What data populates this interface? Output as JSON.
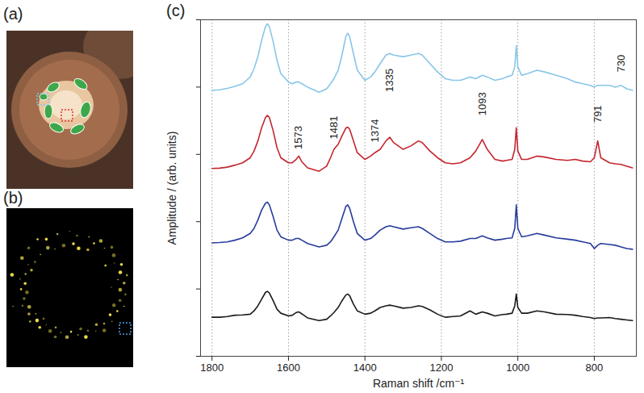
{
  "figure": {
    "panel_labels": [
      "(a)",
      "(b)",
      "(c)"
    ]
  },
  "chart_data": {
    "type": "line",
    "x_label": "Raman shift /cm⁻¹",
    "y_label": "Amplitude / (arb. units)",
    "xlim": [
      1830,
      690
    ],
    "xticks": [
      1800,
      1600,
      1400,
      1200,
      1000,
      800
    ],
    "ylim": [
      0,
      100
    ],
    "yticks": [
      0,
      20,
      40,
      60,
      80,
      100
    ],
    "tick_labels": "x",
    "grid": true,
    "x": [
      1800,
      1780,
      1760,
      1740,
      1720,
      1700,
      1690,
      1680,
      1670,
      1660,
      1655,
      1650,
      1640,
      1630,
      1620,
      1600,
      1590,
      1580,
      1573,
      1565,
      1550,
      1520,
      1500,
      1490,
      1481,
      1470,
      1460,
      1450,
      1445,
      1440,
      1430,
      1420,
      1400,
      1385,
      1374,
      1360,
      1345,
      1335,
      1325,
      1300,
      1280,
      1260,
      1250,
      1230,
      1210,
      1190,
      1170,
      1150,
      1125,
      1110,
      1093,
      1080,
      1060,
      1040,
      1030,
      1015,
      1008,
      1004,
      1000,
      990,
      975,
      950,
      930,
      900,
      870,
      850,
      830,
      810,
      800,
      791,
      783,
      760,
      745,
      730,
      715,
      700
    ],
    "series": [
      {
        "color": "#88c6e8",
        "values": [
          79,
          79.2,
          79.6,
          80.2,
          81,
          83,
          85.5,
          89,
          94,
          98,
          98.8,
          98,
          93.5,
          88,
          84,
          81.5,
          81,
          81.5,
          81.5,
          81,
          80,
          78.5,
          79.5,
          81,
          82.5,
          85,
          89.5,
          95,
          96,
          95,
          90,
          85,
          82,
          83,
          84.5,
          87,
          89.5,
          90,
          89.5,
          89,
          89.5,
          90,
          89.5,
          87,
          84.5,
          82.5,
          82,
          82,
          83,
          82.5,
          83.5,
          83,
          82,
          82.5,
          83,
          83.5,
          86,
          92.3,
          86,
          83.5,
          84,
          85,
          84.5,
          83.5,
          82.5,
          81.5,
          81,
          80.5,
          80,
          80.5,
          80.5,
          80.5,
          80,
          80.5,
          79.5,
          79
        ]
      },
      {
        "color": "#c4262e",
        "values": [
          55.8,
          55.9,
          56.2,
          56.8,
          57.5,
          59,
          61,
          64,
          68,
          71,
          71.6,
          71,
          67,
          62,
          59,
          57.5,
          57.5,
          58.5,
          59.5,
          57.8,
          56,
          55,
          56.5,
          59,
          61.5,
          63,
          65.5,
          67.8,
          68.1,
          67.5,
          64,
          60.5,
          58.5,
          59.5,
          60.5,
          61.5,
          64,
          65.1,
          63.5,
          61.5,
          62.5,
          64,
          63.5,
          61,
          59,
          57.5,
          57.2,
          57.5,
          59,
          61,
          64.4,
          61.5,
          58.5,
          58,
          58.2,
          58.5,
          61.5,
          67.9,
          61,
          58.5,
          58.5,
          59.5,
          59.2,
          58.5,
          58.2,
          58.5,
          58,
          57.8,
          59,
          64,
          59,
          57.5,
          57.2,
          57,
          56.5,
          56
        ]
      },
      {
        "color": "#263c9c",
        "values": [
          33.7,
          33.8,
          34,
          34.5,
          35.2,
          36.5,
          38,
          40.5,
          43.5,
          45.5,
          45.8,
          45,
          41.5,
          37.5,
          35.5,
          34.5,
          34.5,
          35,
          35,
          34.5,
          33.5,
          32.5,
          33,
          34,
          35.5,
          37.5,
          41,
          44.5,
          45,
          44,
          40,
          36.5,
          34.5,
          35,
          36,
          37.5,
          38.5,
          38.8,
          38.5,
          37.8,
          38.2,
          38.5,
          38,
          36.5,
          35,
          34,
          34,
          34.2,
          35,
          35,
          35.8,
          35.2,
          34.5,
          34.8,
          35,
          35.2,
          38,
          45,
          38,
          35.5,
          35.8,
          36.5,
          36,
          35.2,
          34.8,
          34.5,
          34,
          33.5,
          32,
          33,
          33.5,
          33.2,
          33,
          32.5,
          32,
          31.8
        ]
      },
      {
        "color": "#1a1a1a",
        "values": [
          11.6,
          11.6,
          11.8,
          12.2,
          12.3,
          12.5,
          13.5,
          15,
          17,
          19,
          19.3,
          18.8,
          16.5,
          14,
          12.8,
          12,
          12.2,
          13,
          13.2,
          12.6,
          11.4,
          10.6,
          11,
          12,
          13,
          14.5,
          16.5,
          18.2,
          18.5,
          18,
          15.5,
          13.5,
          12.5,
          12.8,
          13.5,
          14.5,
          15,
          15.2,
          15,
          14.3,
          14.5,
          15,
          14.8,
          13.8,
          12.5,
          11.6,
          11.8,
          12,
          13.5,
          12.5,
          13.2,
          12.8,
          12,
          12.4,
          12.5,
          12.8,
          15,
          18.5,
          14.5,
          12.8,
          12.8,
          13.5,
          13.2,
          12.5,
          12.4,
          12.2,
          11.8,
          11.5,
          11.2,
          11.4,
          11.4,
          11.5,
          11.2,
          11,
          10.8,
          10.6
        ]
      }
    ],
    "annotations": [
      {
        "text": "1573",
        "x": 1573,
        "y": 65
      },
      {
        "text": "1481",
        "x": 1481,
        "y": 68
      },
      {
        "text": "1374",
        "x": 1374,
        "y": 67
      },
      {
        "text": "1335",
        "x": 1335,
        "y": 82
      },
      {
        "text": "1093",
        "x": 1093,
        "y": 75
      },
      {
        "text": "791",
        "x": 791,
        "y": 72
      },
      {
        "text": "730",
        "x": 730,
        "y": 87
      }
    ]
  }
}
